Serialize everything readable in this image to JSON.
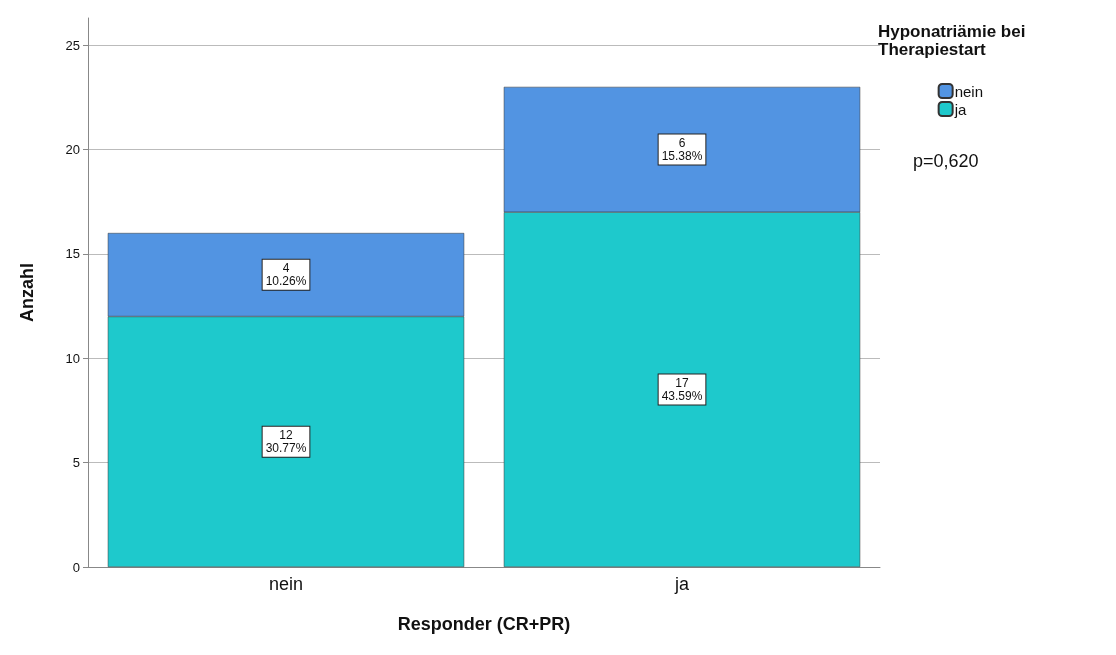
{
  "chart_data": {
    "type": "bar",
    "stacked": true,
    "xlabel": "Responder (CR+PR)",
    "ylabel": "Anzahl",
    "legend_title": "Hyponatriämie bei Therapiestart",
    "categories": [
      "nein",
      "ja"
    ],
    "series": [
      {
        "name": "ja",
        "color": "#1ec9cc",
        "values": [
          12,
          17
        ],
        "value_labels": [
          "12\n30.77%",
          "17\n43.59%"
        ]
      },
      {
        "name": "nein",
        "color": "#5294e2",
        "values": [
          4,
          6
        ],
        "value_labels": [
          "4\n10.26%",
          "6\n15.38%"
        ]
      }
    ],
    "ylim": [
      0,
      26.3
    ],
    "yticks": [
      0,
      5,
      10,
      15,
      20,
      25
    ],
    "grid": "y",
    "legend": "top right",
    "annotations": [
      "p=0,620"
    ]
  }
}
